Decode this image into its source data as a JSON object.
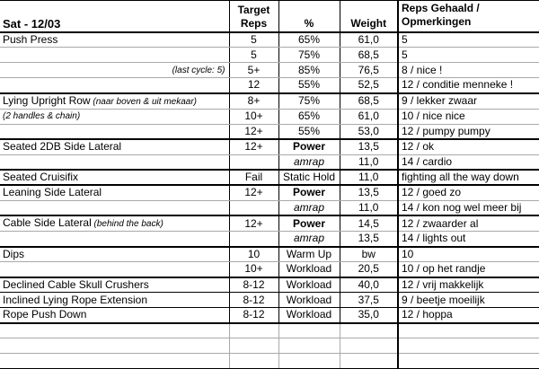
{
  "title": {
    "date": "Sat - 12/03"
  },
  "columns": {
    "target_line1": "Target",
    "target_line2": "Reps",
    "pct": "%",
    "weight": "Weight",
    "reps_line1": "Reps Gehaald /",
    "reps_line2": "Opmerkingen"
  },
  "colors": {
    "grid": "#a9a9a9",
    "border": "#000000",
    "background": "#ffffff",
    "text": "#000000"
  },
  "rows": [
    {
      "ex": "Push Press",
      "target": "5",
      "pct": "65%",
      "weight": "61,0",
      "reps": "5",
      "border": "gray"
    },
    {
      "ex": "",
      "target": "5",
      "pct": "75%",
      "weight": "68,5",
      "reps": "5",
      "border": "gray"
    },
    {
      "ex": "(last cycle: 5)",
      "ex_italic": true,
      "ex_align": "right",
      "target": "5+",
      "pct": "85%",
      "weight": "76,5",
      "reps": "8 / nice !",
      "border": "gray"
    },
    {
      "ex": "",
      "target": "12",
      "pct": "55%",
      "weight": "52,5",
      "reps": "12 / conditie menneke !",
      "border": "thick"
    },
    {
      "ex": "Lying Upright Row",
      "ex_note": "(naar boven & uit mekaar)",
      "target": "8+",
      "pct": "75%",
      "weight": "68,5",
      "reps": "9 / lekker zwaar",
      "border": "gray"
    },
    {
      "ex": "(2 handles & chain)",
      "ex_italic": true,
      "target": "10+",
      "pct": "65%",
      "weight": "61,0",
      "reps": "10 / nice nice",
      "border": "gray"
    },
    {
      "ex": "",
      "target": "12+",
      "pct": "55%",
      "weight": "53,0",
      "reps": "12 / pumpy pumpy",
      "border": "thick"
    },
    {
      "ex": "Seated 2DB Side Lateral",
      "target": "12+",
      "pct": "Power",
      "pct_bold": true,
      "weight": "13,5",
      "reps": "12 / ok",
      "border": "gray"
    },
    {
      "ex": "",
      "target": "",
      "pct": "amrap",
      "pct_italic": true,
      "weight": "11,0",
      "reps": "14 / cardio",
      "border": "thick"
    },
    {
      "ex": "Seated Cruisifix",
      "target": "Fail",
      "pct": "Static Hold",
      "weight": "11,0",
      "reps": "fighting all the way down",
      "border": "thick"
    },
    {
      "ex": "Leaning Side Lateral",
      "target": "12+",
      "pct": "Power",
      "pct_bold": true,
      "weight": "13,5",
      "reps": "12 / goed zo",
      "border": "gray"
    },
    {
      "ex": "",
      "target": "",
      "pct": "amrap",
      "pct_italic": true,
      "weight": "11,0",
      "reps": "14 / kon nog wel meer bij",
      "border": "thick"
    },
    {
      "ex": "Cable Side Lateral",
      "ex_note": "(behind the back)",
      "target": "12+",
      "pct": "Power",
      "pct_bold": true,
      "weight": "14,5",
      "reps": "12 / zwaarder al",
      "border": "gray"
    },
    {
      "ex": "",
      "target": "",
      "pct": "amrap",
      "pct_italic": true,
      "weight": "13,5",
      "reps": "14 / lights out",
      "border": "thick"
    },
    {
      "ex": "Dips",
      "target": "10",
      "pct": "Warm Up",
      "weight": "bw",
      "reps": "10",
      "border": "gray"
    },
    {
      "ex": "",
      "target": "10+",
      "pct": "Workload",
      "weight": "20,5",
      "reps": "10 / op het randje",
      "border": "thick"
    },
    {
      "ex": "Declined Cable Skull Crushers",
      "target": "8-12",
      "pct": "Workload",
      "weight": "40,0",
      "reps": "12 / vrij makkelijk",
      "border": "thin"
    },
    {
      "ex": "Inclined Lying Rope Extension",
      "target": "8-12",
      "pct": "Workload",
      "weight": "37,5",
      "reps": "9 / beetje moeilijk",
      "border": "thin"
    },
    {
      "ex": "Rope Push Down",
      "target": "8-12",
      "pct": "Workload",
      "weight": "35,0",
      "reps": "12 / hoppa",
      "border": "thick"
    },
    {
      "ex": "",
      "target": "",
      "pct": "",
      "weight": "",
      "reps": "",
      "border": "gray",
      "empty": true
    },
    {
      "ex": "",
      "target": "",
      "pct": "",
      "weight": "",
      "reps": "",
      "border": "gray",
      "empty": true
    },
    {
      "ex": "",
      "target": "",
      "pct": "",
      "weight": "",
      "reps": "",
      "border": "thick",
      "empty": true
    }
  ]
}
